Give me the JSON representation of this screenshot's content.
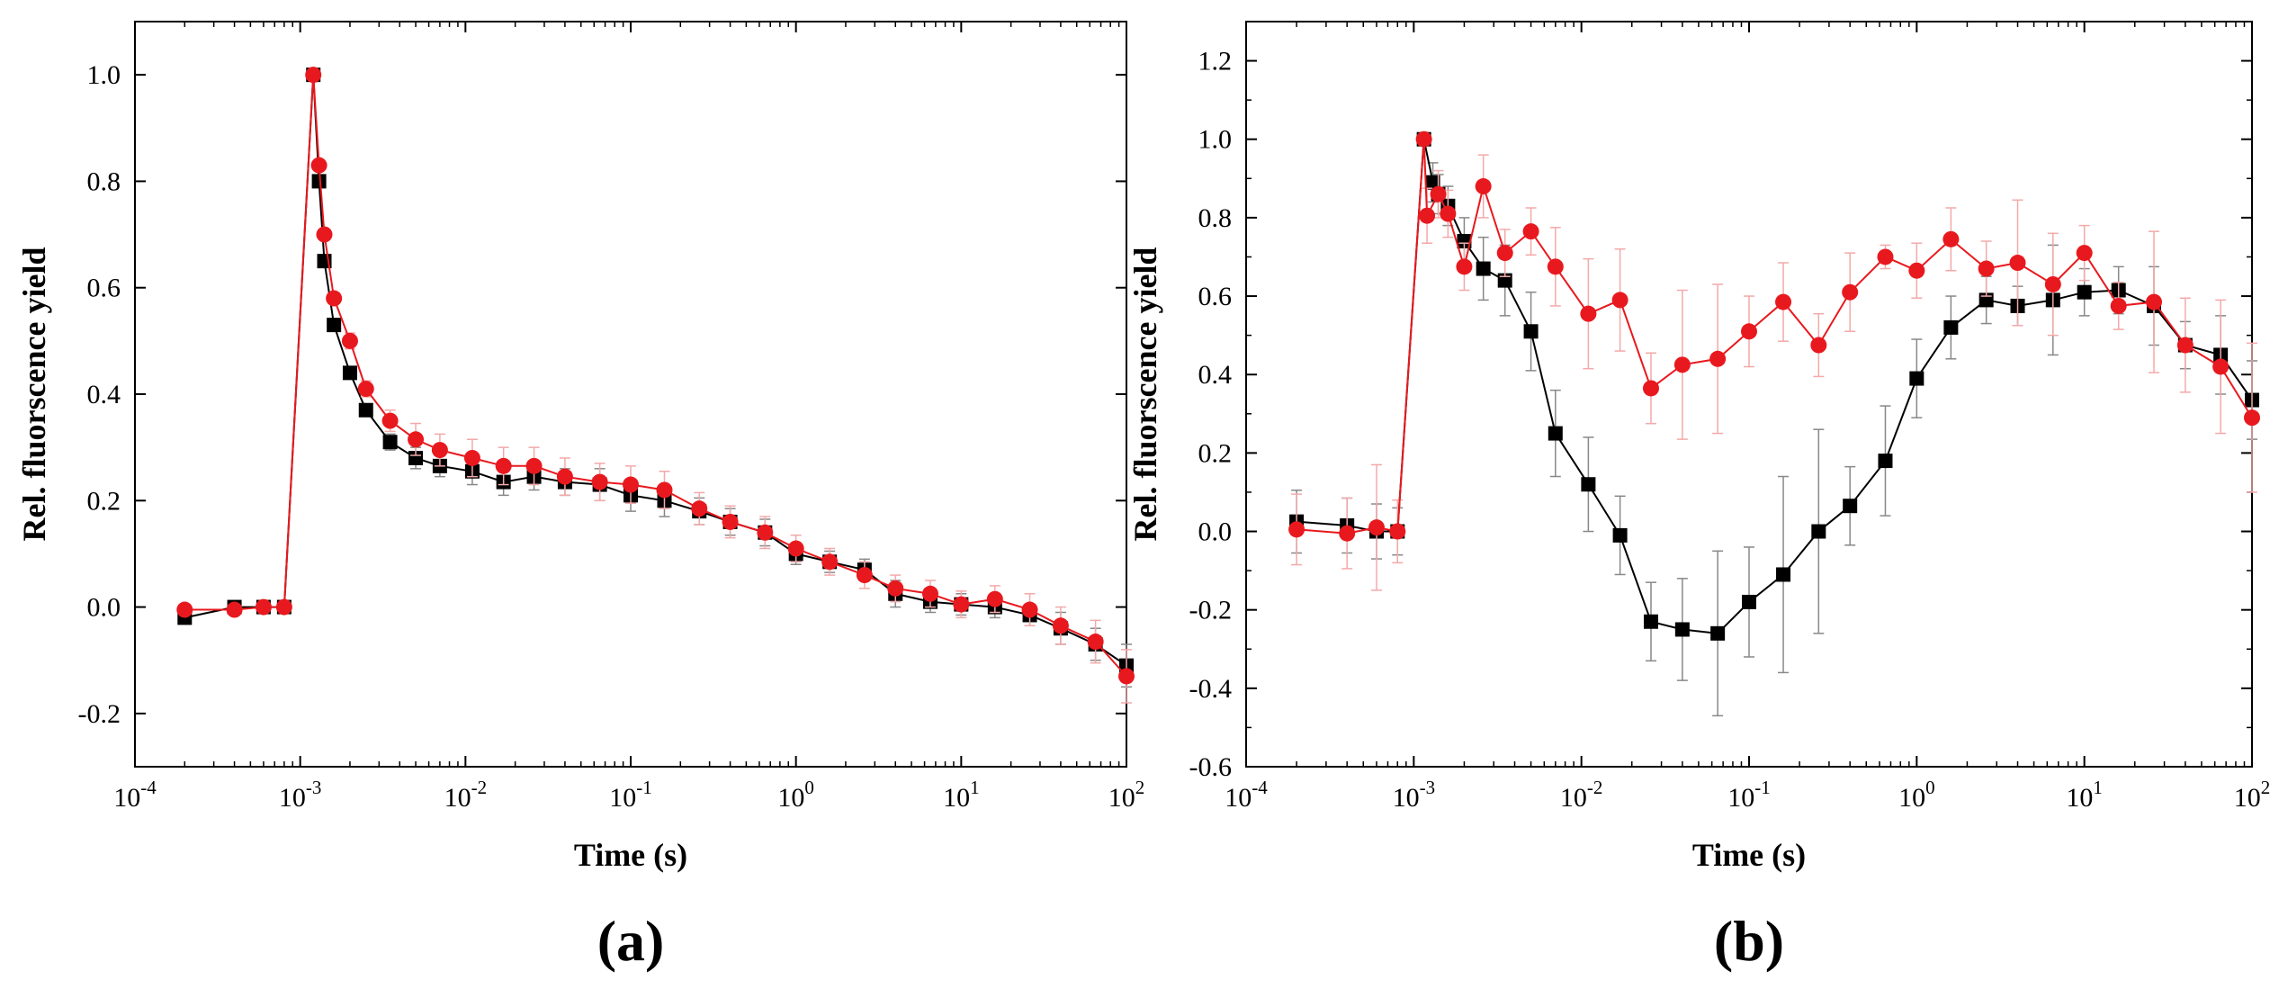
{
  "chart_data": [
    {
      "id": "a",
      "type": "line",
      "panel_label": "(a)",
      "xlabel": "Time (s)",
      "ylabel": "Rel. fluorscence yield",
      "xscale": "log",
      "xlim": [
        0.0001,
        100
      ],
      "ylim": [
        -0.3,
        1.1
      ],
      "xticks": [
        {
          "value": 0.0001,
          "base": "10",
          "exp": "-4"
        },
        {
          "value": 0.001,
          "base": "10",
          "exp": "-3"
        },
        {
          "value": 0.01,
          "base": "10",
          "exp": "-2"
        },
        {
          "value": 0.1,
          "base": "10",
          "exp": "-1"
        },
        {
          "value": 1,
          "base": "10",
          "exp": "0"
        },
        {
          "value": 10,
          "base": "10",
          "exp": "1"
        },
        {
          "value": 100,
          "base": "10",
          "exp": "2"
        }
      ],
      "yticks": [
        {
          "value": -0.2,
          "label": "-0.2"
        },
        {
          "value": 0.0,
          "label": "0.0"
        },
        {
          "value": 0.2,
          "label": "0.2"
        },
        {
          "value": 0.4,
          "label": "0.4"
        },
        {
          "value": 0.6,
          "label": "0.6"
        },
        {
          "value": 0.8,
          "label": "0.8"
        },
        {
          "value": 1.0,
          "label": "1.0"
        }
      ],
      "x": [
        0.0002,
        0.0004,
        0.0006,
        0.0008,
        0.0012,
        0.0013,
        0.0014,
        0.0016,
        0.002,
        0.0025,
        0.0035,
        0.005,
        0.007,
        0.011,
        0.017,
        0.026,
        0.04,
        0.065,
        0.1,
        0.16,
        0.26,
        0.4,
        0.65,
        1.0,
        1.6,
        2.6,
        4.0,
        6.5,
        10,
        16,
        26,
        40,
        65,
        100
      ],
      "series": [
        {
          "name": "black squares",
          "color": "#000000",
          "marker": "square",
          "values": [
            -0.02,
            0.0,
            0.0,
            0.0,
            1.0,
            0.8,
            0.65,
            0.53,
            0.44,
            0.37,
            0.31,
            0.28,
            0.265,
            0.255,
            0.235,
            0.245,
            0.235,
            0.23,
            0.21,
            0.2,
            0.18,
            0.16,
            0.14,
            0.1,
            0.085,
            0.07,
            0.025,
            0.01,
            0.005,
            0.0,
            -0.015,
            -0.04,
            -0.07,
            -0.11
          ],
          "errors": [
            0.01,
            0.01,
            0.01,
            0.01,
            0.0,
            0.01,
            0.01,
            0.01,
            0.01,
            0.01,
            0.015,
            0.02,
            0.02,
            0.025,
            0.025,
            0.025,
            0.025,
            0.03,
            0.03,
            0.03,
            0.025,
            0.025,
            0.025,
            0.02,
            0.02,
            0.02,
            0.025,
            0.02,
            0.02,
            0.02,
            0.02,
            0.03,
            0.03,
            0.04
          ]
        },
        {
          "name": "red circles",
          "color": "#e8191e",
          "error_color": "#f3a9a9",
          "marker": "circle",
          "values": [
            -0.005,
            -0.005,
            0.0,
            0.0,
            1.0,
            0.83,
            0.7,
            0.58,
            0.5,
            0.41,
            0.35,
            0.315,
            0.295,
            0.28,
            0.265,
            0.265,
            0.245,
            0.235,
            0.23,
            0.22,
            0.185,
            0.16,
            0.14,
            0.11,
            0.085,
            0.06,
            0.035,
            0.025,
            0.005,
            0.015,
            -0.005,
            -0.035,
            -0.065,
            -0.13
          ],
          "errors": [
            0.01,
            0.01,
            0.01,
            0.01,
            0.0,
            0.01,
            0.01,
            0.01,
            0.015,
            0.015,
            0.02,
            0.03,
            0.03,
            0.035,
            0.035,
            0.035,
            0.035,
            0.035,
            0.035,
            0.035,
            0.03,
            0.03,
            0.03,
            0.025,
            0.025,
            0.025,
            0.025,
            0.025,
            0.025,
            0.025,
            0.03,
            0.035,
            0.04,
            0.05
          ]
        }
      ]
    },
    {
      "id": "b",
      "type": "line",
      "panel_label": "(b)",
      "xlabel": "Time (s)",
      "ylabel": "Rel. fluorscence yield",
      "xscale": "log",
      "xlim": [
        0.0001,
        100
      ],
      "ylim": [
        -0.6,
        1.3
      ],
      "xticks": [
        {
          "value": 0.0001,
          "base": "10",
          "exp": "-4"
        },
        {
          "value": 0.001,
          "base": "10",
          "exp": "-3"
        },
        {
          "value": 0.01,
          "base": "10",
          "exp": "-2"
        },
        {
          "value": 0.1,
          "base": "10",
          "exp": "-1"
        },
        {
          "value": 1,
          "base": "10",
          "exp": "0"
        },
        {
          "value": 10,
          "base": "10",
          "exp": "1"
        },
        {
          "value": 100,
          "base": "10",
          "exp": "2"
        }
      ],
      "yticks": [
        {
          "value": -0.6,
          "label": "-0.6"
        },
        {
          "value": -0.4,
          "label": "-0.4"
        },
        {
          "value": -0.2,
          "label": "-0.2"
        },
        {
          "value": 0.0,
          "label": "0.0"
        },
        {
          "value": 0.2,
          "label": "0.2"
        },
        {
          "value": 0.4,
          "label": "0.4"
        },
        {
          "value": 0.6,
          "label": "0.6"
        },
        {
          "value": 0.8,
          "label": "0.8"
        },
        {
          "value": 1.0,
          "label": "1.0"
        },
        {
          "value": 1.2,
          "label": "1.2"
        }
      ],
      "series": [
        {
          "name": "black squares",
          "color": "#000000",
          "marker": "square",
          "x": [
            0.0002,
            0.0004,
            0.0006,
            0.0008,
            0.00115,
            0.0013,
            0.0014,
            0.0016,
            0.002,
            0.0026,
            0.0035,
            0.005,
            0.007,
            0.011,
            0.017,
            0.026,
            0.04,
            0.065,
            0.1,
            0.16,
            0.26,
            0.4,
            0.65,
            1.0,
            1.6,
            2.6,
            4.0,
            6.5,
            10,
            16,
            26,
            40,
            65,
            100
          ],
          "values": [
            0.025,
            0.015,
            0.0,
            0.0,
            1.0,
            0.89,
            0.86,
            0.83,
            0.74,
            0.67,
            0.64,
            0.51,
            0.25,
            0.12,
            -0.01,
            -0.23,
            -0.25,
            -0.26,
            -0.18,
            -0.11,
            0.0,
            0.065,
            0.18,
            0.39,
            0.52,
            0.59,
            0.575,
            0.59,
            0.61,
            0.615,
            0.575,
            0.475,
            0.45,
            0.335
          ],
          "errors": [
            0.08,
            0.07,
            0.07,
            0.06,
            0.0,
            0.05,
            0.05,
            0.05,
            0.06,
            0.08,
            0.09,
            0.1,
            0.11,
            0.12,
            0.1,
            0.1,
            0.13,
            0.21,
            0.14,
            0.25,
            0.26,
            0.1,
            0.14,
            0.1,
            0.08,
            0.06,
            0.05,
            0.14,
            0.06,
            0.06,
            0.1,
            0.06,
            0.1,
            0.1
          ]
        },
        {
          "name": "red circles",
          "color": "#e8191e",
          "error_color": "#f3a9a9",
          "marker": "circle",
          "x": [
            0.0002,
            0.0004,
            0.0006,
            0.0008,
            0.00115,
            0.0012,
            0.0014,
            0.0016,
            0.002,
            0.0026,
            0.0035,
            0.005,
            0.007,
            0.011,
            0.017,
            0.026,
            0.04,
            0.065,
            0.1,
            0.16,
            0.26,
            0.4,
            0.65,
            1.0,
            1.6,
            2.6,
            4.0,
            6.5,
            10,
            16,
            26,
            40,
            65,
            100
          ],
          "values": [
            0.005,
            -0.005,
            0.01,
            0.0,
            1.0,
            0.805,
            0.86,
            0.81,
            0.675,
            0.88,
            0.71,
            0.765,
            0.675,
            0.555,
            0.59,
            0.365,
            0.425,
            0.44,
            0.51,
            0.585,
            0.475,
            0.61,
            0.7,
            0.665,
            0.745,
            0.67,
            0.685,
            0.63,
            0.71,
            0.575,
            0.585,
            0.475,
            0.42,
            0.29
          ],
          "errors": [
            0.09,
            0.09,
            0.16,
            0.08,
            0.0,
            0.07,
            0.06,
            0.06,
            0.06,
            0.08,
            0.06,
            0.06,
            0.1,
            0.14,
            0.13,
            0.09,
            0.19,
            0.19,
            0.09,
            0.1,
            0.08,
            0.1,
            0.03,
            0.07,
            0.08,
            0.07,
            0.16,
            0.13,
            0.07,
            0.06,
            0.18,
            0.12,
            0.17,
            0.19
          ]
        }
      ]
    }
  ]
}
